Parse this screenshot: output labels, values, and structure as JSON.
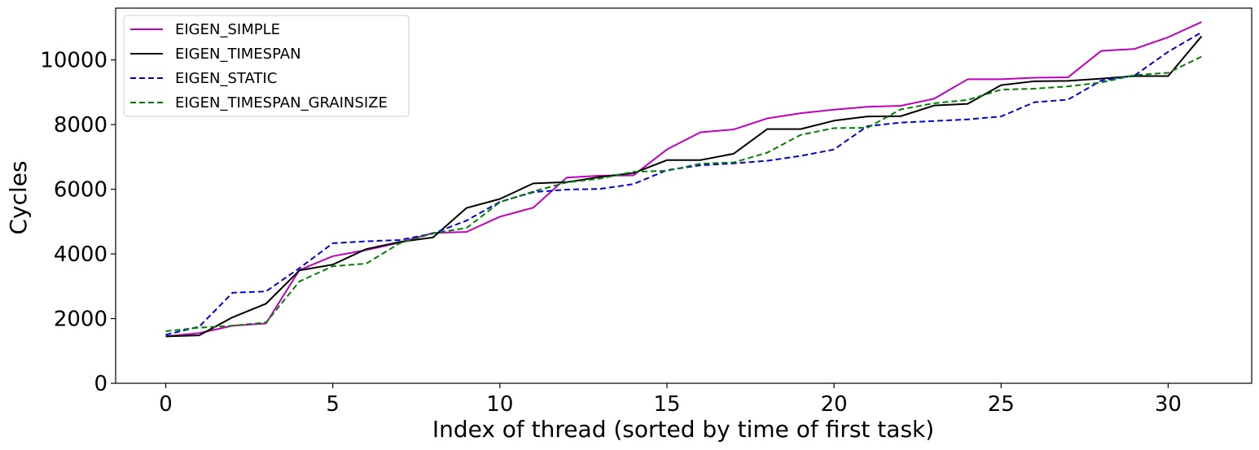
{
  "chart_data": {
    "type": "line",
    "xlabel": "Index of thread (sorted by time of first task)",
    "ylabel": "Cycles",
    "xlim": [
      -1.5,
      32.5
    ],
    "ylim": [
      0,
      11600
    ],
    "x_ticks": [
      0,
      5,
      10,
      15,
      20,
      25,
      30
    ],
    "y_ticks": [
      0,
      2000,
      4000,
      6000,
      8000,
      10000
    ],
    "grid": false,
    "legend_position": "top-left",
    "x": [
      0,
      1,
      2,
      3,
      4,
      5,
      6,
      7,
      8,
      9,
      10,
      11,
      12,
      13,
      14,
      15,
      16,
      17,
      18,
      19,
      20,
      21,
      22,
      23,
      24,
      25,
      26,
      27,
      28,
      29,
      30,
      31
    ],
    "series": [
      {
        "name": "EIGEN_SIMPLE",
        "color": "#bf00bf",
        "dash": "solid",
        "values": [
          1450,
          1550,
          1780,
          1850,
          3500,
          3930,
          4120,
          4350,
          4650,
          4680,
          5150,
          5430,
          6360,
          6420,
          6430,
          7230,
          7760,
          7850,
          8190,
          8350,
          8460,
          8550,
          8580,
          8800,
          9400,
          9400,
          9450,
          9460,
          10280,
          10340,
          10700,
          11170
        ]
      },
      {
        "name": "EIGEN_TIMESPAN",
        "color": "#000000",
        "dash": "solid",
        "values": [
          1450,
          1480,
          2040,
          2460,
          3490,
          3670,
          4150,
          4370,
          4510,
          5420,
          5700,
          6180,
          6220,
          6380,
          6500,
          6900,
          6900,
          7100,
          7860,
          7860,
          8120,
          8250,
          8260,
          8590,
          8640,
          9220,
          9340,
          9350,
          9420,
          9500,
          9500,
          10730
        ]
      },
      {
        "name": "EIGEN_STATIC",
        "color": "#0000dd",
        "dash": "dashed",
        "values": [
          1500,
          1750,
          2800,
          2840,
          3560,
          4330,
          4390,
          4430,
          4630,
          5030,
          5610,
          5910,
          5990,
          6010,
          6160,
          6590,
          6740,
          6800,
          6880,
          7030,
          7230,
          7950,
          8060,
          8110,
          8160,
          8250,
          8690,
          8770,
          9360,
          9520,
          10250,
          10850
        ]
      },
      {
        "name": "EIGEN_TIMESPAN_GRAINSIZE",
        "color": "#008000",
        "dash": "dashed",
        "values": [
          1610,
          1720,
          1780,
          1880,
          3150,
          3620,
          3700,
          4330,
          4640,
          4800,
          5600,
          5930,
          6210,
          6330,
          6540,
          6570,
          6790,
          6830,
          7130,
          7680,
          7890,
          7900,
          8470,
          8660,
          8760,
          9080,
          9110,
          9180,
          9300,
          9530,
          9600,
          10100
        ]
      }
    ]
  }
}
